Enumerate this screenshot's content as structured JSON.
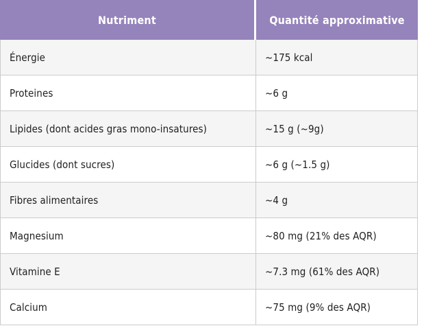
{
  "table": {
    "columns": [
      {
        "label": "Nutriment"
      },
      {
        "label": "Quantité approximative"
      }
    ],
    "rows": [
      {
        "nutrient": "Énergie",
        "quantity": "~175 kcal"
      },
      {
        "nutrient": "Proteines",
        "quantity": "~6 g"
      },
      {
        "nutrient": "Lipides (dont acides gras mono-insatures)",
        "quantity": "~15 g (~9g)"
      },
      {
        "nutrient": "Glucides (dont sucres)",
        "quantity": "~6 g (~1.5 g)"
      },
      {
        "nutrient": "Fibres alimentaires",
        "quantity": "~4 g"
      },
      {
        "nutrient": "Magnesium",
        "quantity": "~80 mg (21% des AQR)"
      },
      {
        "nutrient": "Vitamine E",
        "quantity": "~7.3 mg (61% des AQR)"
      },
      {
        "nutrient": "Calcium",
        "quantity": "~75 mg (9% des AQR)"
      }
    ],
    "colors": {
      "header_bg": "#9583BB",
      "header_text": "#FFFFFF",
      "row_alt_bg": "#F5F5F5",
      "row_bg": "#FFFFFF",
      "border": "#CBCBCB",
      "text": "#1E1E1E"
    }
  }
}
